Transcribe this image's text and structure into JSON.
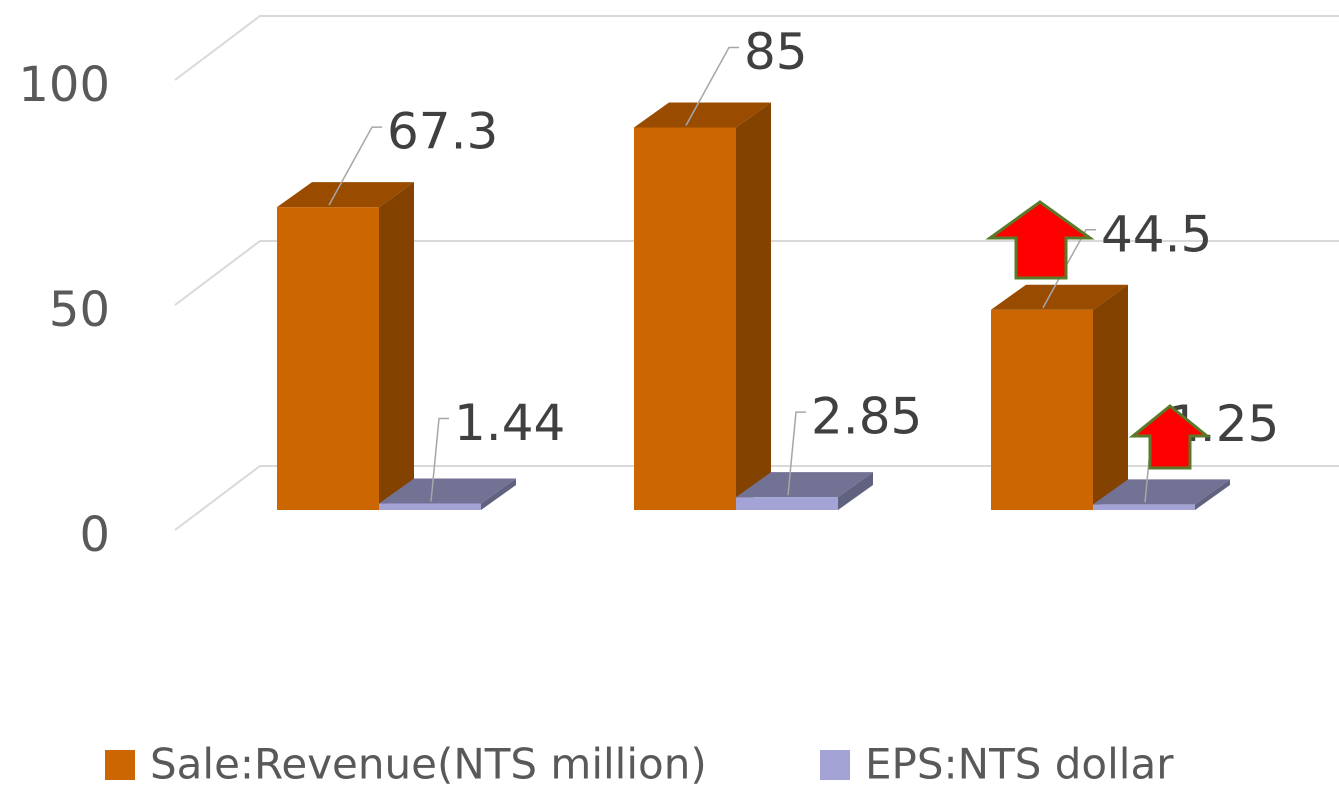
{
  "chart_data": {
    "type": "bar3d",
    "categories": [
      null,
      null,
      null
    ],
    "series": [
      {
        "name": "Sale:Revenue(NTS million)",
        "color": "#cc6600",
        "values": [
          67.3,
          85,
          44.5
        ]
      },
      {
        "name": "EPS:NTS dollar",
        "color": "#a3a3d6",
        "values": [
          1.44,
          2.85,
          1.25
        ]
      }
    ],
    "ylim": [
      0,
      100
    ],
    "yticks": [
      0,
      50,
      100
    ],
    "grid": true
  }
}
